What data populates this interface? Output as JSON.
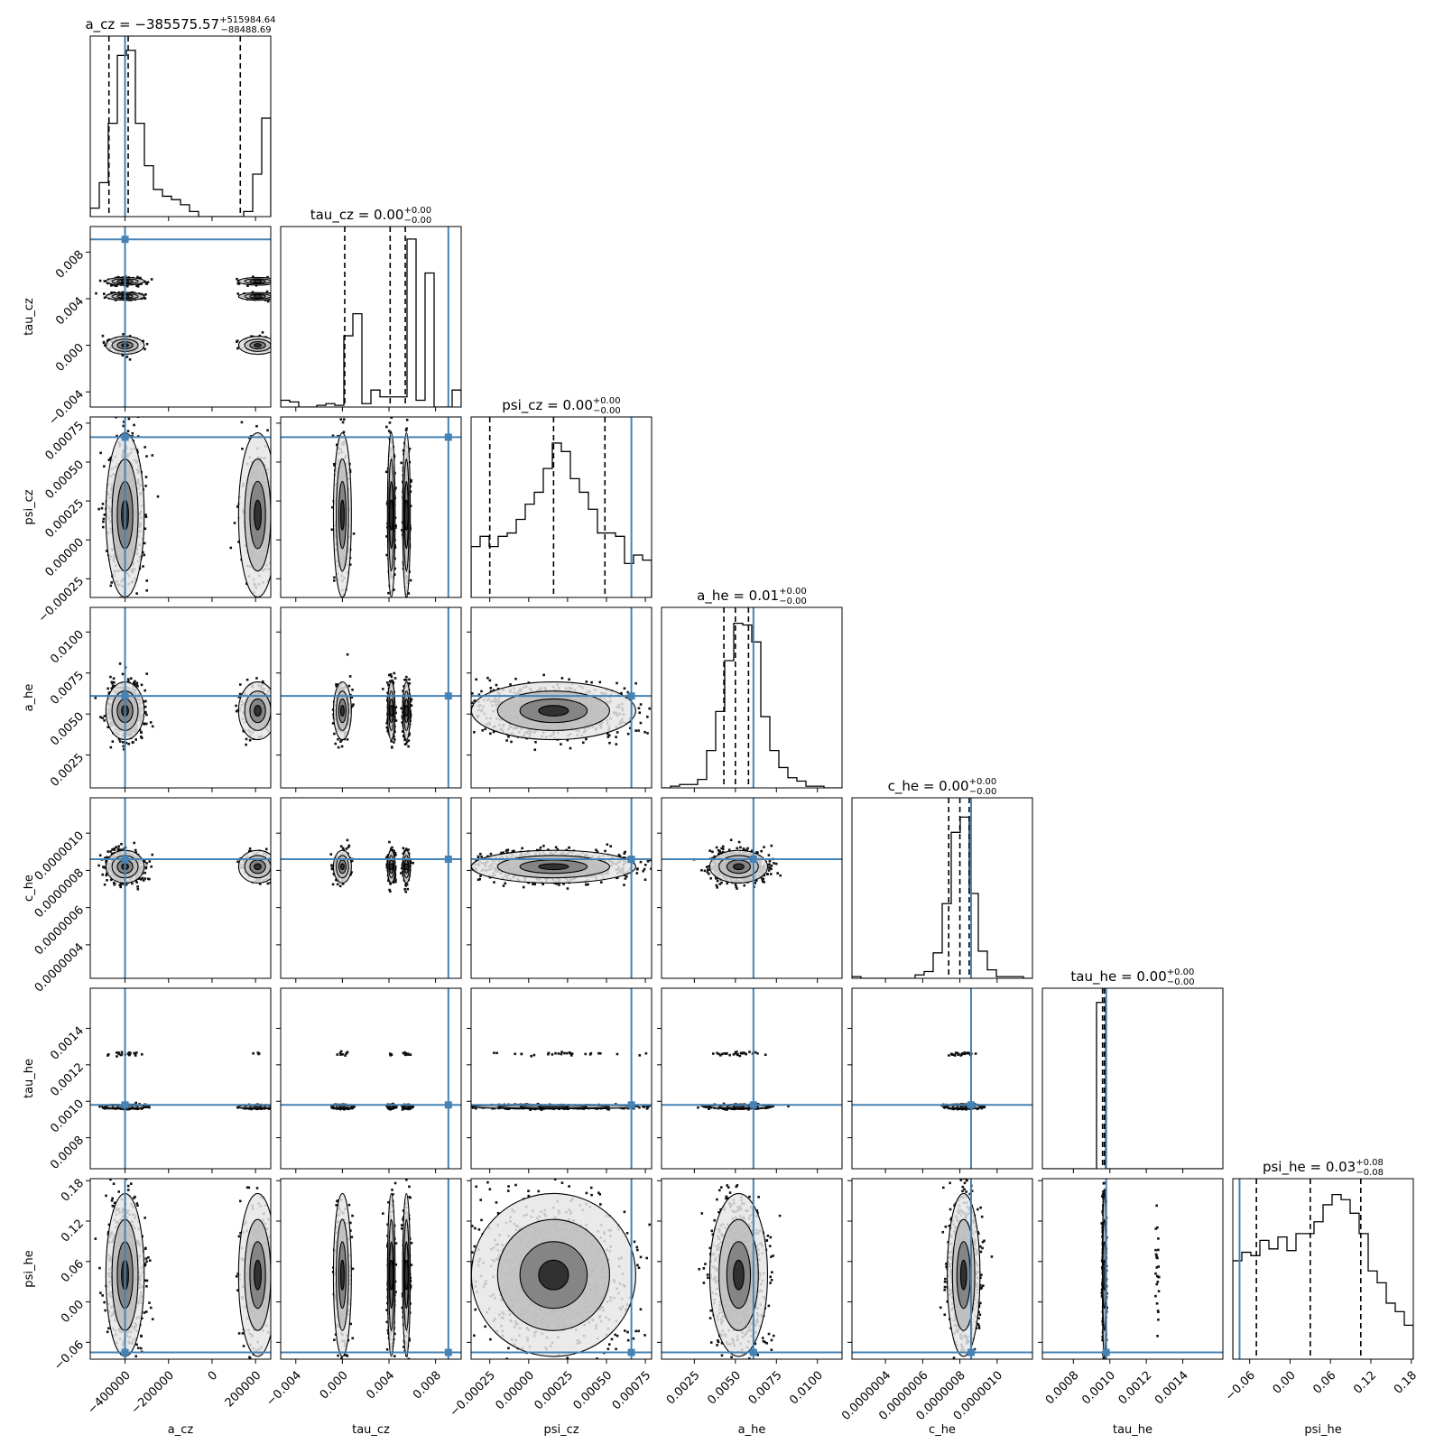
{
  "chart_data": {
    "type": "corner",
    "parameters": [
      "a_cz",
      "tau_cz",
      "psi_cz",
      "a_he",
      "c_he",
      "tau_he",
      "psi_he"
    ],
    "truth_color": "#4682b4",
    "truths": {
      "a_cz": -400000,
      "tau_cz": 0.0091,
      "psi_cz": 0.00066,
      "a_he": 0.0061,
      "c_he": 8.6e-07,
      "tau_he": 0.00098,
      "psi_he": -0.075
    },
    "ranges": {
      "a_cz": [
        -560000,
        270000
      ],
      "tau_cz": [
        -0.0053,
        0.0102
      ],
      "psi_cz": [
        -0.00037,
        0.00079
      ],
      "a_he": [
        0.0005,
        0.0115
      ],
      "c_he": [
        2.2e-07,
        1.19e-06
      ],
      "tau_he": [
        0.00063,
        0.00162
      ],
      "psi_he": [
        -0.085,
        0.183
      ]
    },
    "ticks": {
      "a_cz": [
        {
          "v": -400000,
          "l": "−400000"
        },
        {
          "v": -200000,
          "l": "−200000"
        },
        {
          "v": 0,
          "l": "0"
        },
        {
          "v": 200000,
          "l": "200000"
        }
      ],
      "tau_cz": [
        {
          "v": -0.004,
          "l": "−0.004"
        },
        {
          "v": 0.0,
          "l": "0.000"
        },
        {
          "v": 0.004,
          "l": "0.004"
        },
        {
          "v": 0.008,
          "l": "0.008"
        }
      ],
      "psi_cz": [
        {
          "v": -0.00025,
          "l": "−0.00025"
        },
        {
          "v": 0.0,
          "l": "0.00000"
        },
        {
          "v": 0.00025,
          "l": "0.00025"
        },
        {
          "v": 0.0005,
          "l": "0.00050"
        },
        {
          "v": 0.00075,
          "l": "0.00075"
        }
      ],
      "a_he": [
        {
          "v": 0.0025,
          "l": "0.0025"
        },
        {
          "v": 0.005,
          "l": "0.0050"
        },
        {
          "v": 0.0075,
          "l": "0.0075"
        },
        {
          "v": 0.01,
          "l": "0.0100"
        }
      ],
      "c_he": [
        {
          "v": 4e-07,
          "l": "0.0000004"
        },
        {
          "v": 6e-07,
          "l": "0.0000006"
        },
        {
          "v": 8e-07,
          "l": "0.0000008"
        },
        {
          "v": 1e-06,
          "l": "0.0000010"
        }
      ],
      "tau_he": [
        {
          "v": 0.0008,
          "l": "0.0008"
        },
        {
          "v": 0.001,
          "l": "0.0010"
        },
        {
          "v": 0.0012,
          "l": "0.0012"
        },
        {
          "v": 0.0014,
          "l": "0.0014"
        }
      ],
      "psi_he": [
        {
          "v": -0.06,
          "l": "−0.06"
        },
        {
          "v": 0.0,
          "l": "0.00"
        },
        {
          "v": 0.06,
          "l": "0.06"
        },
        {
          "v": 0.12,
          "l": "0.12"
        },
        {
          "v": 0.18,
          "l": "0.18"
        }
      ]
    },
    "titles": [
      {
        "param": "a_cz",
        "main": "a_cz = −385575.57",
        "sup": "+515984.64",
        "sub": "−88488.69"
      },
      {
        "param": "tau_cz",
        "main": "tau_cz = 0.00",
        "sup": "+0.00",
        "sub": "−0.00"
      },
      {
        "param": "psi_cz",
        "main": "psi_cz = 0.00",
        "sup": "+0.00",
        "sub": "−0.00"
      },
      {
        "param": "a_he",
        "main": "a_he = 0.01",
        "sup": "+0.00",
        "sub": "−0.00"
      },
      {
        "param": "c_he",
        "main": "c_he = 0.00",
        "sup": "+0.00",
        "sub": "−0.00"
      },
      {
        "param": "tau_he",
        "main": "tau_he = 0.00",
        "sup": "+0.00",
        "sub": "−0.00"
      },
      {
        "param": "psi_he",
        "main": "psi_he = 0.03",
        "sup": "+0.08",
        "sub": "−0.08"
      }
    ],
    "quantiles": {
      "a_cz": [
        -474000,
        -385575,
        130000
      ],
      "tau_cz": [
        0.0002,
        0.0041,
        0.0054
      ],
      "psi_cz": [
        -0.00025,
        0.00016,
        0.00049
      ],
      "a_he": [
        0.0043,
        0.005,
        0.0058
      ],
      "c_he": [
        7.4e-07,
        8e-07,
        8.5e-07
      ],
      "tau_he": [
        0.00096,
        0.00097,
        0.00098
      ],
      "psi_he": [
        -0.05,
        0.03,
        0.105
      ]
    },
    "histograms": {
      "a_cz": [
        0.05,
        0.2,
        0.55,
        0.95,
        0.98,
        0.55,
        0.3,
        0.16,
        0.12,
        0.1,
        0.07,
        0.03,
        0.0,
        0.0,
        0.0,
        0.0,
        0.0,
        0.03,
        0.25,
        0.58
      ],
      "tau_cz": [
        0.04,
        0.03,
        0,
        0,
        0.01,
        0.02,
        0.01,
        0.42,
        0.55,
        0.02,
        0.1,
        0.06,
        0.06,
        0.06,
        0.99,
        0.04,
        0.79,
        0.0,
        0.0,
        0.1
      ],
      "psi_cz": [
        0.3,
        0.36,
        0.3,
        0.36,
        0.38,
        0.46,
        0.55,
        0.62,
        0.76,
        0.91,
        0.86,
        0.7,
        0.62,
        0.52,
        0.38,
        0.38,
        0.36,
        0.2,
        0.25,
        0.22
      ],
      "a_he": [
        0.0,
        0.01,
        0.02,
        0.02,
        0.05,
        0.22,
        0.45,
        0.75,
        0.97,
        0.96,
        0.86,
        0.42,
        0.22,
        0.12,
        0.06,
        0.04,
        0.01,
        0.01,
        0.0,
        0.0
      ],
      "c_he": [
        0.01,
        0.0,
        0.0,
        0.0,
        0.0,
        0.0,
        0.0,
        0.02,
        0.04,
        0.15,
        0.44,
        0.86,
        0.95,
        0.5,
        0.16,
        0.05,
        0.01,
        0.01,
        0.01,
        0.0
      ],
      "tau_he": [
        0.0,
        0.0,
        0.0,
        0.0,
        0.0,
        0.0,
        0.98,
        0.0,
        0.0,
        0.0,
        0.0,
        0.0,
        0.0,
        0.0,
        0.0,
        0.0,
        0.0,
        0.0,
        0.0,
        0.0
      ],
      "psi_he": [
        0.58,
        0.63,
        0.61,
        0.7,
        0.65,
        0.72,
        0.64,
        0.74,
        0.74,
        0.81,
        0.91,
        0.97,
        0.94,
        0.86,
        0.74,
        0.52,
        0.45,
        0.33,
        0.28,
        0.2
      ]
    }
  }
}
